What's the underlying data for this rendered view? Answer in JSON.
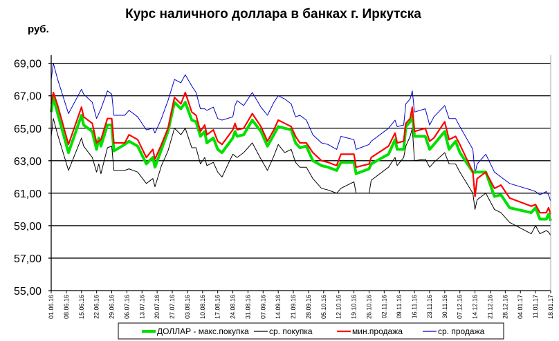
{
  "chart_data": {
    "type": "line",
    "title": "Курс наличного доллара в банках г. Иркутска",
    "ylabel": "руб.",
    "xlabel": "",
    "ylim": [
      55,
      69
    ],
    "yticks": [
      "55,00",
      "57,00",
      "59,00",
      "61,00",
      "63,00",
      "65,00",
      "67,00",
      "69,00"
    ],
    "xticks": [
      "01.06.16",
      "08.06.16",
      "15.06.16",
      "22.06.16",
      "29.06.16",
      "06.07.16",
      "13.07.16",
      "20.07.16",
      "27.07.16",
      "03.08.16",
      "10.08.16",
      "17.08.16",
      "24.08.16",
      "31.08.16",
      "07.09.16",
      "14.09.16",
      "21.09.16",
      "28.09.16",
      "05.10.16",
      "12.10.16",
      "19.10.16",
      "26.10.16",
      "02.11.16",
      "09.11.16",
      "16.11.16",
      "23.11.16",
      "30.11.16",
      "07.12.16",
      "14.12.16",
      "21.12.16",
      "28.12.16",
      "04.01.17",
      "11.01.17",
      "18.01.17"
    ],
    "grid": true,
    "legend_position": "bottom",
    "x": [
      "01.06.16",
      "02.06.16",
      "04.06.16",
      "09.06.16",
      "15.06.16",
      "16.06.16",
      "20.06.16",
      "22.06.16",
      "23.06.16",
      "24.06.16",
      "27.06.16",
      "29.06.16",
      "30.06.16",
      "05.07.16",
      "07.07.16",
      "11.07.16",
      "15.07.16",
      "18.07.16",
      "19.07.16",
      "22.07.16",
      "25.07.16",
      "28.07.16",
      "31.07.16",
      "02.08.16",
      "05.08.16",
      "07.08.16",
      "09.08.16",
      "11.08.16",
      "12.08.16",
      "15.08.16",
      "17.08.16",
      "19.08.16",
      "24.08.16",
      "25.08.16",
      "26.08.16",
      "29.08.16",
      "02.09.16",
      "06.09.16",
      "09.09.16",
      "12.09.16",
      "14.09.16",
      "17.09.16",
      "20.09.16",
      "22.09.16",
      "24.09.16",
      "27.09.16",
      "30.09.16",
      "04.10.16",
      "07.10.16",
      "11.10.16",
      "13.10.16",
      "19.10.16",
      "20.10.16",
      "26.10.16",
      "27.10.16",
      "04.11.16",
      "07.11.16",
      "08.11.16",
      "11.11.16",
      "12.11.16",
      "14.11.16",
      "15.11.16",
      "16.11.16",
      "21.11.16",
      "23.11.16",
      "25.11.16",
      "30.11.16",
      "02.12.16",
      "05.12.16",
      "07.12.16",
      "13.12.16",
      "14.12.16",
      "15.12.16",
      "19.12.16",
      "23.12.16",
      "26.12.16",
      "30.12.16",
      "09.01.17",
      "11.01.17",
      "13.01.17",
      "16.01.17",
      "17.01.17",
      "18.01.17"
    ],
    "series": [
      {
        "name": "ДОЛЛАР  - макс.покупка",
        "color": "#00e000",
        "values": [
          66.0,
          66.9,
          65.9,
          63.5,
          65.8,
          65.2,
          64.8,
          63.7,
          64.4,
          63.9,
          65.2,
          65.2,
          63.6,
          64.0,
          64.2,
          63.9,
          62.8,
          63.2,
          62.6,
          63.7,
          64.8,
          66.6,
          66.2,
          66.6,
          65.5,
          65.4,
          64.5,
          64.8,
          64.1,
          64.4,
          63.7,
          63.5,
          64.4,
          64.8,
          64.5,
          64.6,
          65.5,
          64.8,
          63.9,
          64.6,
          65.1,
          65.0,
          64.9,
          64.1,
          63.8,
          63.9,
          63.0,
          62.7,
          62.6,
          62.4,
          62.9,
          62.9,
          62.2,
          62.5,
          62.8,
          63.4,
          64.3,
          63.7,
          63.7,
          65.1,
          65.4,
          65.8,
          64.5,
          64.5,
          63.7,
          64.0,
          64.8,
          63.7,
          64.2,
          63.5,
          62.3,
          62.3,
          62.3,
          62.3,
          60.8,
          60.9,
          60.1,
          59.8,
          60.1,
          59.4,
          59.4,
          59.7,
          59.3
        ]
      },
      {
        "name": "ср. покупка",
        "color": "#000000",
        "values": [
          64.5,
          65.6,
          64.6,
          62.4,
          64.4,
          63.9,
          63.2,
          62.3,
          62.8,
          62.2,
          63.8,
          63.9,
          62.4,
          62.4,
          62.5,
          62.3,
          61.6,
          61.9,
          61.4,
          62.7,
          63.6,
          65.0,
          64.6,
          65.0,
          63.8,
          63.8,
          62.8,
          63.2,
          62.7,
          62.9,
          62.3,
          62.0,
          63.4,
          63.3,
          63.2,
          63.5,
          64.1,
          63.1,
          62.4,
          63.3,
          64.0,
          63.5,
          63.7,
          62.9,
          62.6,
          62.6,
          61.9,
          61.3,
          61.2,
          61.0,
          61.3,
          61.7,
          61.0,
          61.0,
          61.8,
          62.6,
          63.2,
          62.7,
          63.2,
          63.9,
          64.5,
          65.0,
          63.0,
          63.1,
          62.6,
          62.9,
          63.5,
          62.8,
          62.8,
          62.3,
          61.0,
          60.0,
          60.6,
          61.0,
          60.0,
          59.8,
          59.2,
          58.5,
          59.0,
          58.5,
          58.7,
          58.6,
          58.4
        ]
      },
      {
        "name": "мин.продажа",
        "color": "#ff0000",
        "values": [
          66.5,
          67.2,
          66.4,
          64.0,
          66.3,
          65.7,
          65.3,
          64.1,
          64.2,
          64.3,
          65.6,
          65.6,
          64.1,
          64.1,
          64.6,
          64.3,
          63.2,
          63.7,
          63.1,
          64.0,
          65.0,
          66.9,
          66.5,
          67.2,
          66.0,
          65.8,
          64.8,
          65.2,
          64.6,
          64.9,
          64.2,
          64.0,
          64.9,
          65.3,
          64.9,
          65.0,
          65.9,
          65.1,
          64.2,
          64.9,
          65.5,
          65.3,
          65.1,
          64.5,
          64.1,
          64.1,
          63.5,
          63.0,
          62.9,
          62.7,
          63.4,
          63.4,
          62.6,
          62.8,
          63.2,
          63.9,
          64.7,
          64.1,
          64.2,
          65.3,
          65.6,
          66.3,
          64.8,
          65.0,
          64.2,
          64.4,
          65.4,
          64.3,
          64.5,
          64.0,
          62.3,
          60.8,
          61.9,
          62.3,
          61.3,
          61.5,
          60.7,
          60.2,
          60.3,
          59.8,
          59.8,
          60.1,
          59.7
        ]
      },
      {
        "name": "ср. продажа",
        "color": "#0000cc",
        "values": [
          68.0,
          69.0,
          68.0,
          65.9,
          67.4,
          67.1,
          66.6,
          65.6,
          65.9,
          66.2,
          67.3,
          67.1,
          65.8,
          65.8,
          66.1,
          65.7,
          64.9,
          65.0,
          64.7,
          65.6,
          66.7,
          68.0,
          67.8,
          68.3,
          67.6,
          67.2,
          66.2,
          66.2,
          66.1,
          66.3,
          65.6,
          65.5,
          65.7,
          66.4,
          66.7,
          66.4,
          67.2,
          66.3,
          65.8,
          66.6,
          67.0,
          66.8,
          66.5,
          65.7,
          65.8,
          65.5,
          64.6,
          64.1,
          64.0,
          63.7,
          64.5,
          64.3,
          63.7,
          64.0,
          64.2,
          65.0,
          65.5,
          65.1,
          65.2,
          66.5,
          66.8,
          67.3,
          66.0,
          66.2,
          65.2,
          65.7,
          66.4,
          65.6,
          65.6,
          65.1,
          63.7,
          62.2,
          62.8,
          63.4,
          62.3,
          62.0,
          61.6,
          61.2,
          61.1,
          60.9,
          61.1,
          60.9,
          60.5
        ]
      }
    ]
  }
}
